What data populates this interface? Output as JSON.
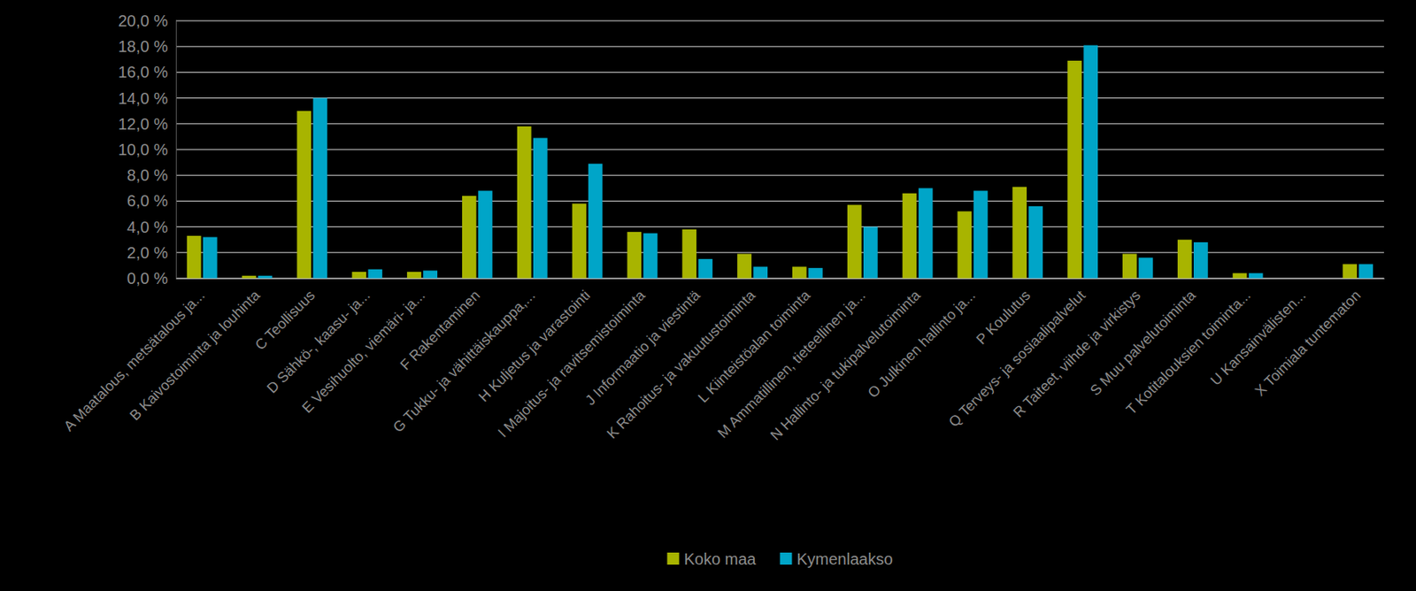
{
  "chart_data": {
    "type": "bar",
    "categories": [
      "A Maatalous, metsätalous ja...",
      "B Kaivostoiminta ja louhinta",
      "C Teollisuus",
      "D Sähkö-, kaasu- ja...",
      "E Vesihuolto, viemäri- ja...",
      "F Rakentaminen",
      "G Tukku- ja vähittäiskauppa,...",
      "H Kuljetus ja varastointi",
      "I Majoitus- ja ravitsemistoiminta",
      "J Informaatio ja viestintä",
      "K Rahoitus- ja vakuutustoiminta",
      "L Kiinteistöalan toiminta",
      "M Ammatillinen, tieteellinen ja...",
      "N Hallinto- ja tukipalvelutoiminta",
      "O Julkinen hallinto ja...",
      "P Koulutus",
      "Q Terveys- ja sosiaalipalvelut",
      "R Taiteet, viihde ja virkistys",
      "S Muu palvelutoiminta",
      "T Kotitalouksien toiminta...",
      "U Kansainvälisten...",
      "X Toimiala tuntematon"
    ],
    "series": [
      {
        "name": "Koko maa",
        "color": "#a8b400",
        "values": [
          3.3,
          0.2,
          13.0,
          0.5,
          0.5,
          6.4,
          11.8,
          5.8,
          3.6,
          3.8,
          1.9,
          0.9,
          5.7,
          6.6,
          5.2,
          7.1,
          16.9,
          1.9,
          3.0,
          0.4,
          0,
          1.1
        ]
      },
      {
        "name": "Kymenlaakso",
        "color": "#00a5c8",
        "values": [
          3.2,
          0.2,
          14.0,
          0.7,
          0.6,
          6.8,
          10.9,
          8.9,
          3.5,
          1.5,
          0.9,
          0.8,
          4.0,
          7.0,
          6.8,
          5.6,
          18.1,
          1.6,
          2.8,
          0.4,
          0,
          1.1
        ]
      }
    ],
    "ylim": [
      0,
      20
    ],
    "yticks": [
      {
        "value": 0,
        "label": "0,0 %"
      },
      {
        "value": 2,
        "label": "2,0 %"
      },
      {
        "value": 4,
        "label": "4,0 %"
      },
      {
        "value": 6,
        "label": "6,0 %"
      },
      {
        "value": 8,
        "label": "8,0 %"
      },
      {
        "value": 10,
        "label": "10,0 %"
      },
      {
        "value": 12,
        "label": "12,0 %"
      },
      {
        "value": 14,
        "label": "14,0 %"
      },
      {
        "value": 16,
        "label": "16,0 %"
      },
      {
        "value": 18,
        "label": "18,0 %"
      },
      {
        "value": 20,
        "label": "20,0 %"
      }
    ],
    "grid": true,
    "legend": "bottom"
  }
}
